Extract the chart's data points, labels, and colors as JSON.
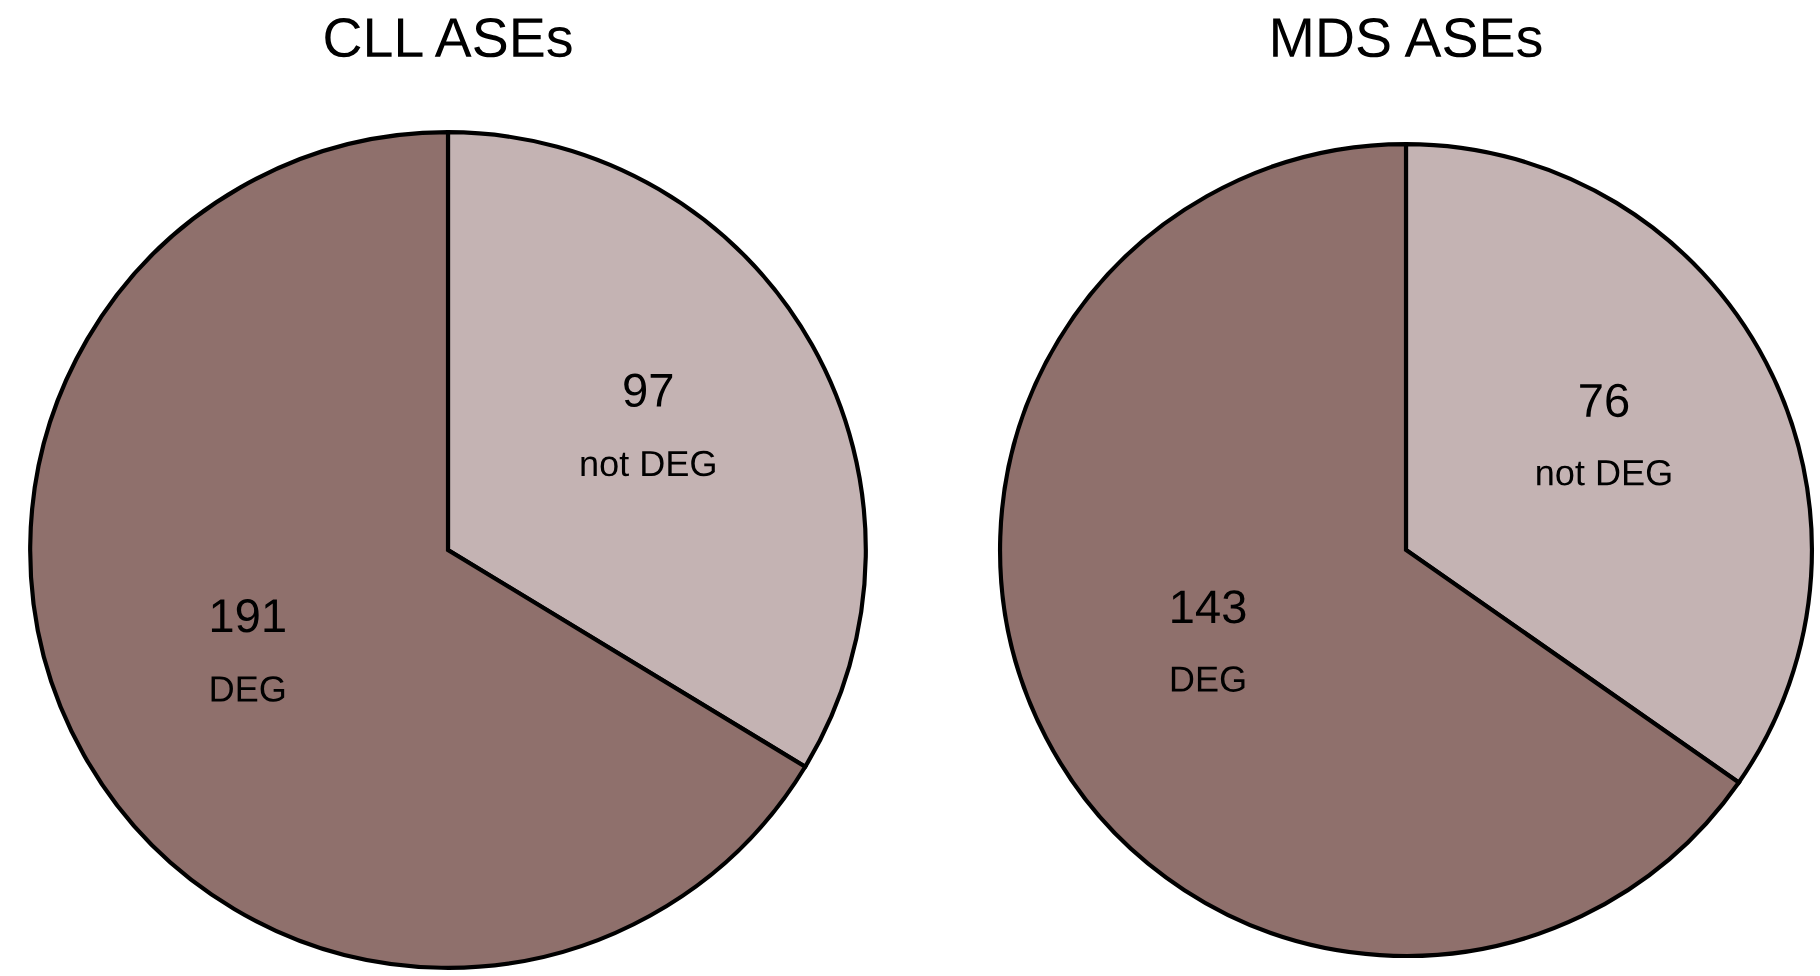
{
  "chart_data": [
    {
      "type": "pie",
      "title": "CLL ASEs",
      "categories": [
        "not DEG",
        "DEG"
      ],
      "values": [
        97,
        191
      ],
      "colors": [
        "#c4b3b3",
        "#8f706c"
      ],
      "data_labels": true
    },
    {
      "type": "pie",
      "title": "MDS ASEs",
      "categories": [
        "not DEG",
        "DEG"
      ],
      "values": [
        76,
        143
      ],
      "colors": [
        "#c4b3b3",
        "#8f706c"
      ],
      "data_labels": true
    }
  ]
}
